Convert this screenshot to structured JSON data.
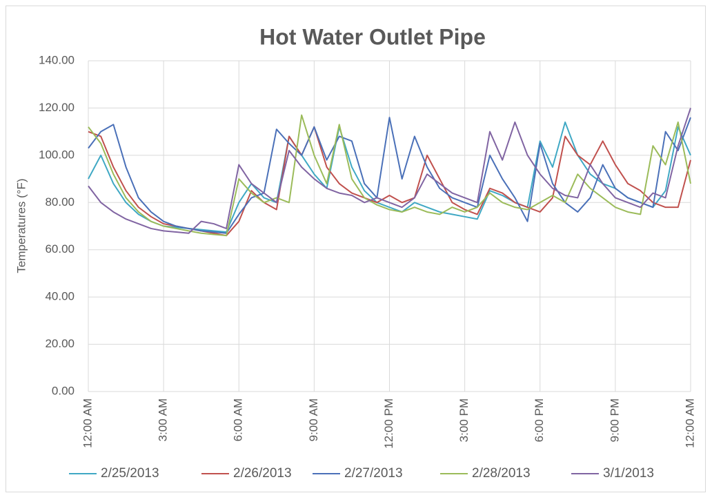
{
  "chart_data": {
    "type": "line",
    "title": "Hot Water Outlet Pipe",
    "y_label": "Temperatures (°F)",
    "x": [
      0,
      0.5,
      1,
      1.5,
      2,
      2.5,
      3,
      3.5,
      4,
      4.5,
      5,
      5.5,
      6,
      6.5,
      7,
      7.5,
      8,
      8.5,
      9,
      9.5,
      10,
      10.5,
      11,
      11.5,
      12,
      12.5,
      13,
      13.5,
      14,
      14.5,
      15,
      15.5,
      16,
      16.5,
      17,
      17.5,
      18,
      18.5,
      19,
      19.5,
      20,
      20.5,
      21,
      21.5,
      22,
      22.5,
      23,
      23.5,
      24
    ],
    "xlim": [
      0,
      24
    ],
    "xticks": [
      {
        "value": 0,
        "label": "12:00 AM"
      },
      {
        "value": 3,
        "label": "3:00 AM"
      },
      {
        "value": 6,
        "label": "6:00 AM"
      },
      {
        "value": 9,
        "label": "9:00 AM"
      },
      {
        "value": 12,
        "label": "12:00 PM"
      },
      {
        "value": 15,
        "label": "3:00 PM"
      },
      {
        "value": 18,
        "label": "6:00 PM"
      },
      {
        "value": 21,
        "label": "9:00 PM"
      },
      {
        "value": 24,
        "label": "12:00 AM"
      }
    ],
    "ylim": [
      0,
      140
    ],
    "yticks": [
      {
        "value": 0,
        "label": "0.00"
      },
      {
        "value": 20,
        "label": "20.00"
      },
      {
        "value": 40,
        "label": "40.00"
      },
      {
        "value": 60,
        "label": "60.00"
      },
      {
        "value": 80,
        "label": "80.00"
      },
      {
        "value": 100,
        "label": "100.00"
      },
      {
        "value": 120,
        "label": "120.00"
      },
      {
        "value": 140,
        "label": "140.00"
      }
    ],
    "grid": true,
    "legend": "bottom",
    "series": [
      {
        "name": "2/25/2013",
        "color": "#3fa8c4",
        "values": [
          90,
          100,
          88,
          80,
          75,
          72,
          70,
          69.5,
          69,
          68.5,
          68,
          67.5,
          80,
          88,
          82,
          80,
          108,
          100,
          92,
          86,
          112,
          95,
          85,
          80,
          78,
          76,
          80,
          78,
          76,
          75,
          74,
          73,
          85,
          83,
          80,
          78,
          106,
          95,
          114,
          100,
          92,
          88,
          86,
          82,
          80,
          78,
          85,
          112,
          100
        ]
      },
      {
        "name": "2/26/2013",
        "color": "#c0504d",
        "values": [
          110,
          108,
          95,
          85,
          78,
          74,
          71,
          70,
          69,
          68,
          67,
          66,
          72,
          85,
          80,
          77,
          108,
          100,
          112,
          95,
          88,
          84,
          82,
          80,
          83,
          80,
          82,
          100,
          90,
          80,
          77,
          75,
          86,
          84,
          80,
          78,
          76,
          82,
          108,
          100,
          96,
          106,
          96,
          88,
          85,
          80,
          78,
          78,
          98
        ]
      },
      {
        "name": "2/27/2013",
        "color": "#4a70b8",
        "values": [
          103,
          110,
          113,
          95,
          82,
          76,
          72,
          70,
          69,
          68,
          67.5,
          67,
          75,
          82,
          84,
          111,
          105,
          100,
          112,
          98,
          108,
          106,
          88,
          82,
          116,
          90,
          108,
          95,
          86,
          82,
          80,
          78,
          100,
          90,
          82,
          72,
          105,
          88,
          80,
          76,
          82,
          96,
          86,
          82,
          80,
          78,
          110,
          102,
          116
        ]
      },
      {
        "name": "2/28/2013",
        "color": "#9bbb59",
        "values": [
          112,
          105,
          92,
          82,
          76,
          72,
          70,
          69,
          68,
          67,
          66.5,
          66,
          90,
          84,
          80,
          82,
          80,
          117,
          100,
          88,
          113,
          90,
          82,
          79,
          77,
          76,
          78,
          76,
          75,
          78,
          76,
          78,
          84,
          80,
          78,
          77,
          80,
          83,
          80,
          92,
          86,
          82,
          78,
          76,
          75,
          104,
          96,
          114,
          88
        ]
      },
      {
        "name": "3/1/2013",
        "color": "#8064a2",
        "values": [
          87,
          80,
          76,
          73,
          71,
          69,
          68,
          67.5,
          67,
          72,
          71,
          69,
          96,
          88,
          84,
          80,
          102,
          95,
          90,
          86,
          84,
          83,
          80,
          82,
          80,
          78,
          82,
          92,
          88,
          84,
          82,
          80,
          110,
          98,
          114,
          100,
          92,
          86,
          83,
          82,
          96,
          88,
          82,
          80,
          78,
          84,
          82,
          104,
          120
        ]
      }
    ]
  }
}
